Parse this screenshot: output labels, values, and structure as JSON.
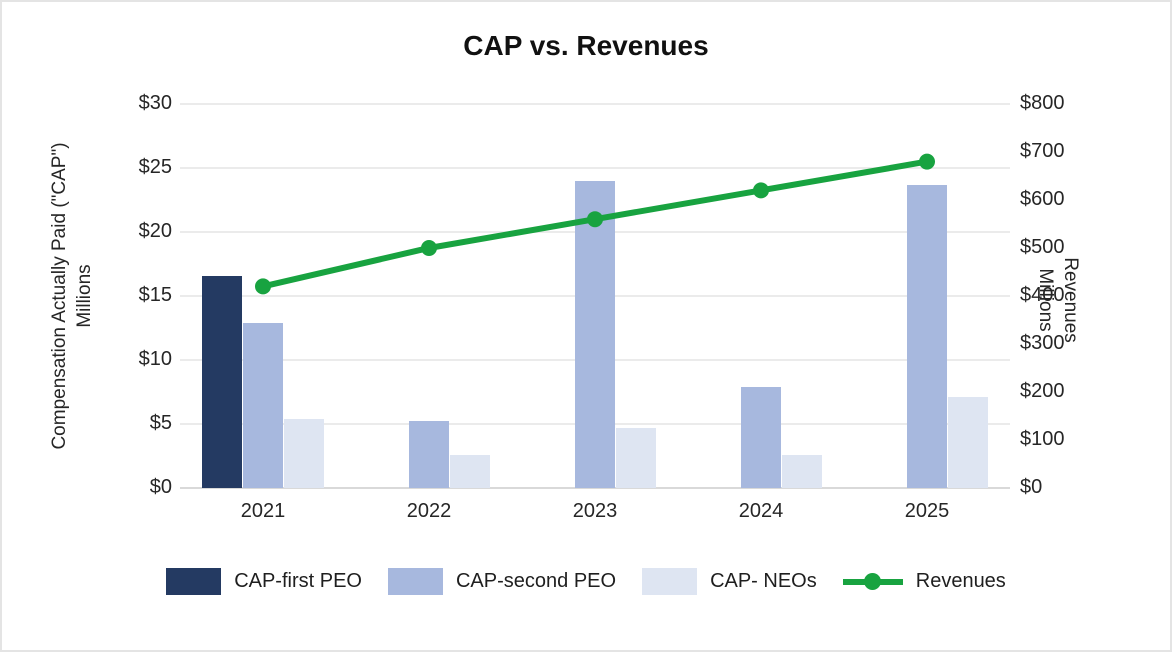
{
  "title": "CAP vs. Revenues",
  "chart_data": {
    "type": "bar",
    "subtype": "grouped-bar-with-line-combo",
    "categories": [
      "2021",
      "2022",
      "2023",
      "2024",
      "2025"
    ],
    "series": [
      {
        "name": "CAP-first PEO",
        "type": "bar",
        "axis": "left",
        "color": "#243A62",
        "values": [
          16.6,
          null,
          null,
          null,
          null
        ]
      },
      {
        "name": "CAP-second PEO",
        "type": "bar",
        "axis": "left",
        "color": "#A7B8DE",
        "values": [
          12.9,
          5.2,
          24.0,
          7.9,
          23.7
        ]
      },
      {
        "name": "CAP- NEOs",
        "type": "bar",
        "axis": "left",
        "color": "#DEE5F2",
        "values": [
          5.4,
          2.6,
          4.7,
          2.6,
          7.1
        ]
      },
      {
        "name": "Revenues",
        "type": "line",
        "axis": "right",
        "color": "#18A340",
        "values": [
          420,
          500,
          560,
          620,
          680
        ]
      }
    ],
    "left_axis": {
      "title_line1": "Compensation Actually Paid (\"CAP\")",
      "title_line2": "Millions",
      "min": 0,
      "max": 30,
      "step": 5,
      "ticks": [
        "$0",
        "$5",
        "$10",
        "$15",
        "$20",
        "$25",
        "$30"
      ]
    },
    "right_axis": {
      "title_line1": "Revenues",
      "title_line2": "Millions",
      "min": 0,
      "max": 800,
      "step": 100,
      "ticks": [
        "$0",
        "$100",
        "$200",
        "$300",
        "$400",
        "$500",
        "$600",
        "$700",
        "$800"
      ]
    },
    "grid": true,
    "legend_position": "bottom",
    "colors": {
      "grid": "#ebebeb",
      "axis_line": "#d9d9d9",
      "background": "#ffffff"
    }
  }
}
